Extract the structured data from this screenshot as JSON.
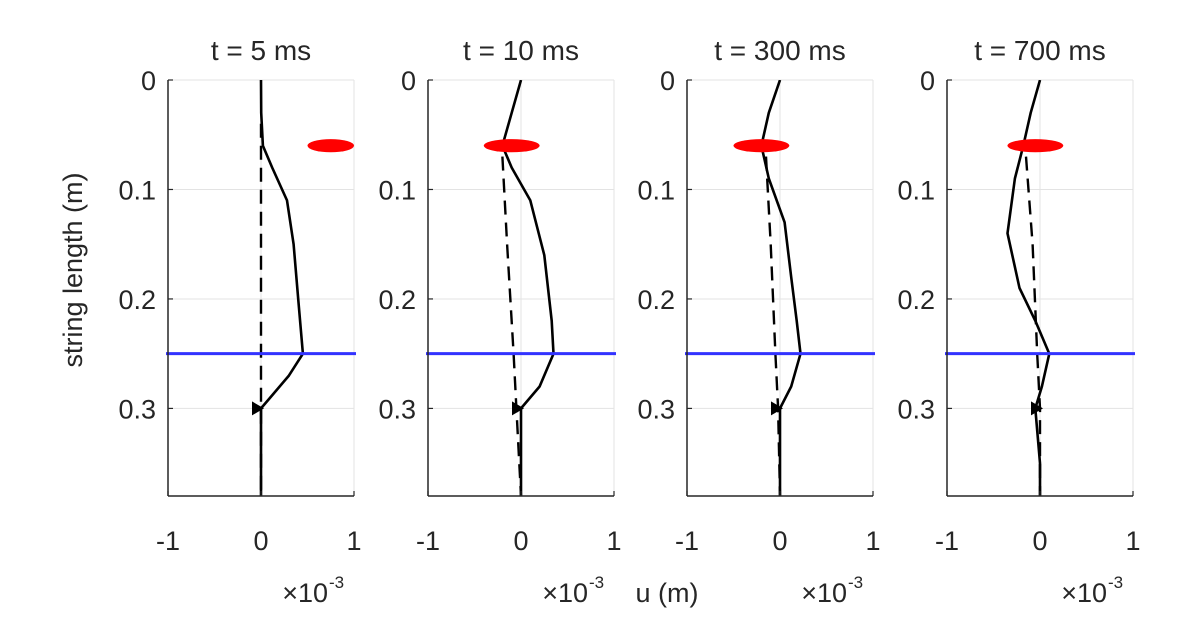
{
  "chart_data": {
    "type": "line",
    "ylabel": "string length (m)",
    "xlabel": "u (m)",
    "x_exponent_label": "×10",
    "x_exponent_power": "-3",
    "xlim": [
      -1,
      1
    ],
    "ylim": [
      0,
      0.38
    ],
    "y_reversed": true,
    "xticks": [
      -1,
      0,
      1
    ],
    "yticks": [
      0,
      0.1,
      0.2,
      0.3
    ],
    "ytick_labels": [
      "0",
      "0.1",
      "0.2",
      "0.3"
    ],
    "xtick_labels": [
      "-1",
      "0",
      "1"
    ],
    "grid": true,
    "horizontal_line": {
      "y": 0.25,
      "color": "#3333ff"
    },
    "marker_point": {
      "x": 0,
      "y": 0.3,
      "shape": "triangle-right",
      "color": "#000000"
    },
    "colors": {
      "solid": "#000000",
      "dashed": "#000000",
      "ellipse": "#ff0000"
    },
    "panels": [
      {
        "title": "t = 5 ms",
        "show_exponent": true,
        "ellipse": {
          "x": 0.75,
          "y": 0.06,
          "rx": 0.25,
          "ry": 0.006
        },
        "solid": [
          [
            0,
            0
          ],
          [
            0.002,
            0.03
          ],
          [
            0.02,
            0.06
          ],
          [
            0.12,
            0.08
          ],
          [
            0.28,
            0.11
          ],
          [
            0.35,
            0.15
          ],
          [
            0.4,
            0.2
          ],
          [
            0.45,
            0.25
          ],
          [
            0.3,
            0.27
          ],
          [
            0.1,
            0.29
          ],
          [
            0,
            0.3
          ],
          [
            0,
            0.35
          ],
          [
            0,
            0.38
          ]
        ],
        "dashed": [
          [
            0,
            0.04
          ],
          [
            0,
            0.3
          ],
          [
            0,
            0.38
          ]
        ]
      },
      {
        "title": "t = 10 ms",
        "show_exponent": false,
        "ellipse": {
          "x": -0.1,
          "y": 0.06,
          "rx": 0.3,
          "ry": 0.006
        },
        "solid": [
          [
            0,
            0
          ],
          [
            -0.1,
            0.03
          ],
          [
            -0.2,
            0.06
          ],
          [
            -0.1,
            0.08
          ],
          [
            0.1,
            0.11
          ],
          [
            0.25,
            0.16
          ],
          [
            0.33,
            0.22
          ],
          [
            0.35,
            0.25
          ],
          [
            0.2,
            0.28
          ],
          [
            0,
            0.3
          ],
          [
            0,
            0.35
          ],
          [
            0,
            0.38
          ]
        ],
        "dashed": [
          [
            -0.2,
            0.07
          ],
          [
            -0.15,
            0.15
          ],
          [
            -0.08,
            0.25
          ],
          [
            -0.05,
            0.3
          ],
          [
            0,
            0.38
          ]
        ]
      },
      {
        "title": "t = 300 ms",
        "show_exponent": true,
        "ellipse": {
          "x": -0.2,
          "y": 0.06,
          "rx": 0.3,
          "ry": 0.006
        },
        "solid": [
          [
            0,
            0
          ],
          [
            -0.12,
            0.03
          ],
          [
            -0.2,
            0.06
          ],
          [
            -0.12,
            0.09
          ],
          [
            0.05,
            0.13
          ],
          [
            0.12,
            0.18
          ],
          [
            0.18,
            0.22
          ],
          [
            0.22,
            0.25
          ],
          [
            0.12,
            0.28
          ],
          [
            0,
            0.3
          ],
          [
            0,
            0.35
          ],
          [
            0,
            0.38
          ]
        ],
        "dashed": [
          [
            -0.15,
            0.07
          ],
          [
            -0.1,
            0.15
          ],
          [
            -0.05,
            0.25
          ],
          [
            -0.02,
            0.3
          ],
          [
            0,
            0.38
          ]
        ]
      },
      {
        "title": "t = 700 ms",
        "show_exponent": true,
        "ellipse": {
          "x": -0.05,
          "y": 0.06,
          "rx": 0.3,
          "ry": 0.006
        },
        "solid": [
          [
            0,
            0
          ],
          [
            -0.1,
            0.03
          ],
          [
            -0.18,
            0.06
          ],
          [
            -0.27,
            0.09
          ],
          [
            -0.35,
            0.14
          ],
          [
            -0.22,
            0.19
          ],
          [
            -0.05,
            0.22
          ],
          [
            0.1,
            0.25
          ],
          [
            0.02,
            0.28
          ],
          [
            -0.05,
            0.3
          ],
          [
            0,
            0.35
          ],
          [
            0,
            0.38
          ]
        ],
        "dashed": [
          [
            -0.15,
            0.07
          ],
          [
            -0.08,
            0.15
          ],
          [
            -0.03,
            0.25
          ],
          [
            0,
            0.3
          ],
          [
            0,
            0.38
          ]
        ]
      }
    ]
  }
}
